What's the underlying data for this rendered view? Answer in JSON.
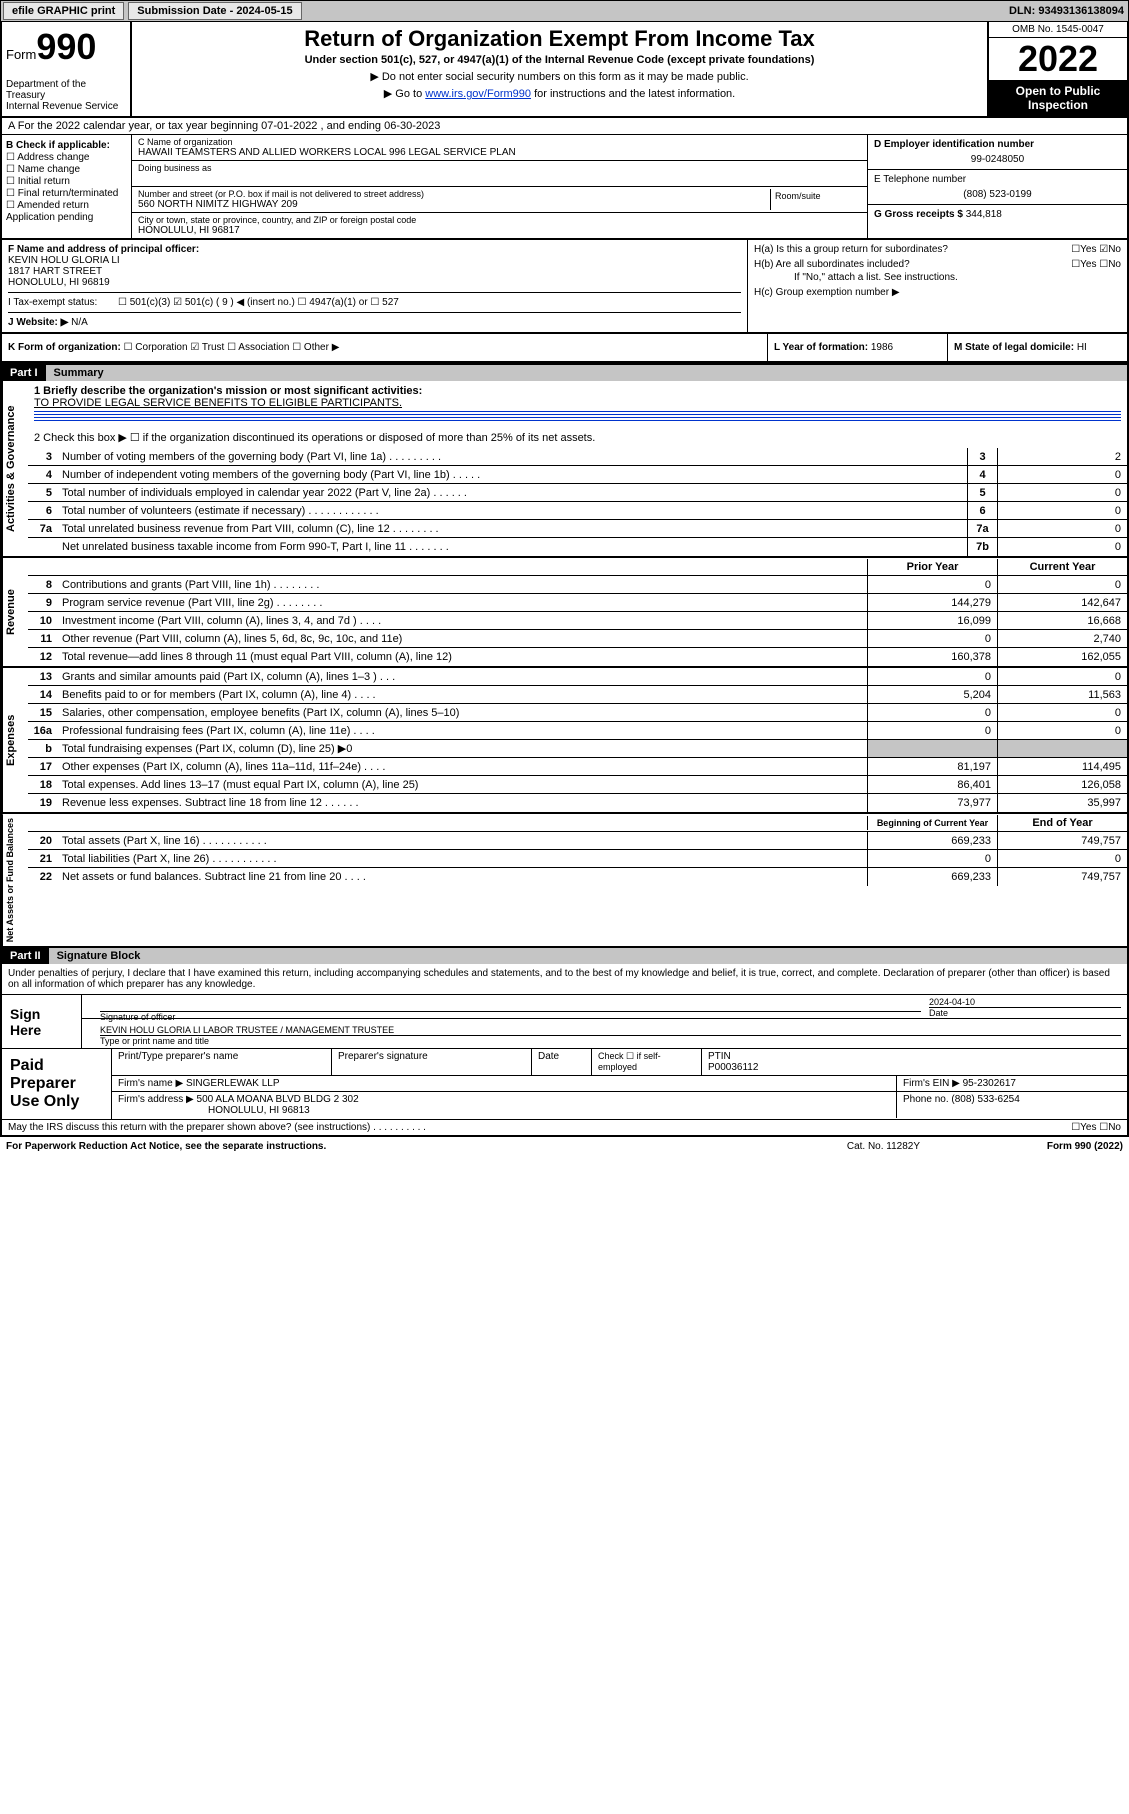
{
  "topbar": {
    "efile_label": "efile GRAPHIC print",
    "submission_label": "Submission Date - 2024-05-15",
    "dln": "DLN: 93493136138094"
  },
  "header": {
    "form_prefix": "Form",
    "form_number": "990",
    "dept": "Department of the Treasury",
    "irs": "Internal Revenue Service",
    "title": "Return of Organization Exempt From Income Tax",
    "subtitle": "Under section 501(c), 527, or 4947(a)(1) of the Internal Revenue Code (except private foundations)",
    "note1": "▶ Do not enter social security numbers on this form as it may be made public.",
    "note2_pre": "▶ Go to ",
    "note2_link": "www.irs.gov/Form990",
    "note2_post": " for instructions and the latest information.",
    "omb": "OMB No. 1545-0047",
    "year": "2022",
    "open_public": "Open to Public Inspection"
  },
  "lineA": "A For the 2022 calendar year, or tax year beginning 07-01-2022    , and ending 06-30-2023",
  "sectionB": {
    "label": "B Check if applicable:",
    "items": [
      "☐ Address change",
      "☐ Name change",
      "☐ Initial return",
      "☐ Final return/terminated",
      "☐ Amended return",
      "  Application pending"
    ]
  },
  "sectionC": {
    "name_label": "C Name of organization",
    "name": "HAWAII TEAMSTERS AND ALLIED WORKERS LOCAL 996 LEGAL SERVICE PLAN",
    "dba_label": "Doing business as",
    "street_label": "Number and street (or P.O. box if mail is not delivered to street address)",
    "room_label": "Room/suite",
    "street": "560 NORTH NIMITZ HIGHWAY 209",
    "city_label": "City or town, state or province, country, and ZIP or foreign postal code",
    "city": "HONOLULU, HI  96817"
  },
  "sectionD": {
    "label": "D Employer identification number",
    "value": "99-0248050"
  },
  "sectionE": {
    "label": "E Telephone number",
    "value": "(808) 523-0199"
  },
  "sectionG": {
    "label": "G Gross receipts $",
    "value": "344,818"
  },
  "sectionF": {
    "label": "F  Name and address of principal officer:",
    "name": "KEVIN HOLU GLORIA LI",
    "street": "1817 HART STREET",
    "city": "HONOLULU, HI  96819"
  },
  "sectionH": {
    "ha": "H(a)  Is this a group return for subordinates?",
    "ha_ans": "☐Yes ☑No",
    "hb": "H(b)  Are all subordinates included?",
    "hb_ans": "☐Yes ☐No",
    "hb_note": "If \"No,\" attach a list. See instructions.",
    "hc": "H(c)  Group exemption number ▶"
  },
  "sectionI": {
    "label": "I    Tax-exempt status:",
    "opts": "☐ 501(c)(3)   ☑ 501(c) ( 9 ) ◀ (insert no.)   ☐ 4947(a)(1) or   ☐ 527"
  },
  "sectionJ": {
    "label": "J    Website: ▶",
    "value": "N/A"
  },
  "sectionK": {
    "label": "K Form of organization:",
    "opts": "☐ Corporation  ☑ Trust  ☐ Association  ☐ Other ▶"
  },
  "sectionL": {
    "label": "L Year of formation:",
    "value": "1986"
  },
  "sectionM": {
    "label": "M State of legal domicile:",
    "value": "HI"
  },
  "part1": {
    "header": "Part I",
    "title": "Summary",
    "line1_label": "1   Briefly describe the organization's mission or most significant activities:",
    "line1_text": "TO PROVIDE LEGAL SERVICE BENEFITS TO ELIGIBLE PARTICIPANTS.",
    "line2": "2   Check this box ▶ ☐  if the organization discontinued its operations or disposed of more than 25% of its net assets.",
    "rows_gov": [
      {
        "n": "3",
        "d": "Number of voting members of the governing body (Part VI, line 1a)   .    .    .    .    .    .    .    .    .",
        "b": "3",
        "v": "2"
      },
      {
        "n": "4",
        "d": "Number of independent voting members of the governing body (Part VI, line 1b)    .    .    .    .    .",
        "b": "4",
        "v": "0"
      },
      {
        "n": "5",
        "d": "Total number of individuals employed in calendar year 2022 (Part V, line 2a)   .    .    .    .    .    .",
        "b": "5",
        "v": "0"
      },
      {
        "n": "6",
        "d": "Total number of volunteers (estimate if necessary)    .    .    .    .    .    .    .    .    .    .    .    .",
        "b": "6",
        "v": "0"
      },
      {
        "n": "7a",
        "d": "Total unrelated business revenue from Part VIII, column (C), line 12    .    .    .    .    .    .    .    .",
        "b": "7a",
        "v": "0"
      },
      {
        "n": "",
        "d": "Net unrelated business taxable income from Form 990-T, Part I, line 11   .    .    .    .    .    .    .",
        "b": "7b",
        "v": "0"
      }
    ],
    "col_prior": "Prior Year",
    "col_current": "Current Year",
    "rows_rev": [
      {
        "n": "8",
        "d": "Contributions and grants (Part VIII, line 1h)    .    .    .    .    .    .    .    .",
        "p": "0",
        "c": "0"
      },
      {
        "n": "9",
        "d": "Program service revenue (Part VIII, line 2g)    .    .    .    .    .    .    .    .",
        "p": "144,279",
        "c": "142,647"
      },
      {
        "n": "10",
        "d": "Investment income (Part VIII, column (A), lines 3, 4, and 7d )    .    .    .    .",
        "p": "16,099",
        "c": "16,668"
      },
      {
        "n": "11",
        "d": "Other revenue (Part VIII, column (A), lines 5, 6d, 8c, 9c, 10c, and 11e)",
        "p": "0",
        "c": "2,740"
      },
      {
        "n": "12",
        "d": "Total revenue—add lines 8 through 11 (must equal Part VIII, column (A), line 12)",
        "p": "160,378",
        "c": "162,055"
      }
    ],
    "rows_exp": [
      {
        "n": "13",
        "d": "Grants and similar amounts paid (Part IX, column (A), lines 1–3 )    .    .    .",
        "p": "0",
        "c": "0"
      },
      {
        "n": "14",
        "d": "Benefits paid to or for members (Part IX, column (A), line 4)    .    .    .    .",
        "p": "5,204",
        "c": "11,563"
      },
      {
        "n": "15",
        "d": "Salaries, other compensation, employee benefits (Part IX, column (A), lines 5–10)",
        "p": "0",
        "c": "0"
      },
      {
        "n": "16a",
        "d": "Professional fundraising fees (Part IX, column (A), line 11e)    .    .    .    .",
        "p": "0",
        "c": "0"
      },
      {
        "n": "b",
        "d": "Total fundraising expenses (Part IX, column (D), line 25)  ▶0",
        "p": "GREY",
        "c": "GREY"
      },
      {
        "n": "17",
        "d": "Other expenses (Part IX, column (A), lines 11a–11d, 11f–24e)    .    .    .    .",
        "p": "81,197",
        "c": "114,495"
      },
      {
        "n": "18",
        "d": "Total expenses. Add lines 13–17 (must equal Part IX, column (A), line 25)",
        "p": "86,401",
        "c": "126,058"
      },
      {
        "n": "19",
        "d": "Revenue less expenses. Subtract line 18 from line 12   .    .    .    .    .    .",
        "p": "73,977",
        "c": "35,997"
      }
    ],
    "col_begin": "Beginning of Current Year",
    "col_end": "End of Year",
    "rows_net": [
      {
        "n": "20",
        "d": "Total assets (Part X, line 16)    .    .    .    .    .    .    .    .    .    .    .",
        "p": "669,233",
        "c": "749,757"
      },
      {
        "n": "21",
        "d": "Total liabilities (Part X, line 26)    .    .    .    .    .    .    .    .    .    .    .",
        "p": "0",
        "c": "0"
      },
      {
        "n": "22",
        "d": "Net assets or fund balances. Subtract line 21 from line 20    .    .    .    .",
        "p": "669,233",
        "c": "749,757"
      }
    ],
    "vlabels": {
      "gov": "Activities & Governance",
      "rev": "Revenue",
      "exp": "Expenses",
      "net": "Net Assets or Fund Balances"
    }
  },
  "part2": {
    "header": "Part II",
    "title": "Signature Block",
    "declaration": "Under penalties of perjury, I declare that I have examined this return, including accompanying schedules and statements, and to the best of my knowledge and belief, it is true, correct, and complete. Declaration of preparer (other than officer) is based on all information of which preparer has any knowledge.",
    "sign_here": "Sign Here",
    "sig_officer_label": "Signature of officer",
    "date_label": "Date",
    "date_value": "2024-04-10",
    "officer_name": "KEVIN HOLU GLORIA LI  LABOR TRUSTEE / MANAGEMENT TRUSTEE",
    "officer_title_label": "Type or print name and title",
    "paid_prep": "Paid Preparer Use Only",
    "prep_name_label": "Print/Type preparer's name",
    "prep_sig_label": "Preparer's signature",
    "prep_date_label": "Date",
    "check_if": "Check ☐ if self-employed",
    "ptin_label": "PTIN",
    "ptin": "P00036112",
    "firm_name_label": "Firm's name    ▶",
    "firm_name": "SINGERLEWAK LLP",
    "firm_ein_label": "Firm's EIN ▶",
    "firm_ein": "95-2302617",
    "firm_addr_label": "Firm's address ▶",
    "firm_addr1": "500 ALA MOANA BLVD BLDG 2 302",
    "firm_addr2": "HONOLULU, HI  96813",
    "phone_label": "Phone no.",
    "phone": "(808) 533-6254",
    "may_irs": "May the IRS discuss this return with the preparer shown above? (see instructions)    .    .    .    .    .    .    .    .    .    .",
    "may_irs_ans": "☐Yes   ☐No"
  },
  "footer": {
    "paperwork": "For Paperwork Reduction Act Notice, see the separate instructions.",
    "catno": "Cat. No. 11282Y",
    "formno": "Form 990 (2022)"
  }
}
